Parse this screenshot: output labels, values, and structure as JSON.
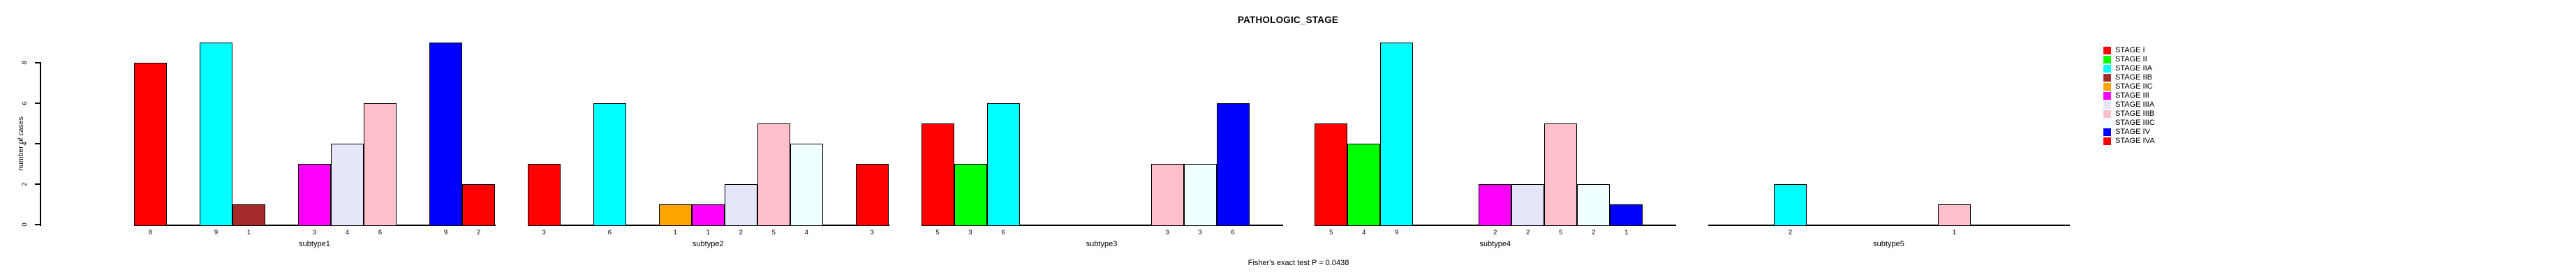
{
  "chart_data": {
    "type": "bar",
    "title": "PATHOLOGIC_STAGE",
    "ylabel": "number of cases",
    "xlabel": "",
    "ylim": [
      0,
      9
    ],
    "yticks": [
      0,
      2,
      4,
      6,
      8
    ],
    "grid": false,
    "legend_position": "right",
    "bar_value_labels": true,
    "categories": [
      "subtype1",
      "subtype2",
      "subtype3",
      "subtype4",
      "subtype5"
    ],
    "series": [
      {
        "name": "STAGE I",
        "color": "#FF0000",
        "values": [
          8,
          3,
          5,
          5,
          0
        ]
      },
      {
        "name": "STAGE II",
        "color": "#00FF00",
        "values": [
          0,
          0,
          3,
          4,
          0
        ]
      },
      {
        "name": "STAGE IIA",
        "color": "#00FFFF",
        "values": [
          9,
          6,
          6,
          9,
          2
        ]
      },
      {
        "name": "STAGE IIB",
        "color": "#A52A2A",
        "values": [
          1,
          0,
          0,
          0,
          0
        ]
      },
      {
        "name": "STAGE IIC",
        "color": "#FFA500",
        "values": [
          0,
          1,
          0,
          0,
          0
        ]
      },
      {
        "name": "STAGE III",
        "color": "#FF00FF",
        "values": [
          3,
          1,
          0,
          2,
          0
        ]
      },
      {
        "name": "STAGE IIIA",
        "color": "#E6E6FA",
        "values": [
          4,
          2,
          0,
          2,
          0
        ]
      },
      {
        "name": "STAGE IIIB",
        "color": "#FFC0CB",
        "values": [
          6,
          5,
          3,
          5,
          1
        ]
      },
      {
        "name": "STAGE IIIC",
        "color": "#F0FFFF",
        "values": [
          0,
          4,
          3,
          2,
          0
        ]
      },
      {
        "name": "STAGE IV",
        "color": "#0000FF",
        "values": [
          9,
          0,
          6,
          1,
          0
        ]
      },
      {
        "name": "STAGE IVA",
        "color": "#FF0000",
        "values": [
          2,
          3,
          0,
          0,
          0
        ]
      }
    ],
    "annotation": "Fisher's exact test P = 0.0438"
  },
  "colors": {
    "axis": "#000000",
    "bar_border": "#000000",
    "background": "#FFFFFF"
  }
}
